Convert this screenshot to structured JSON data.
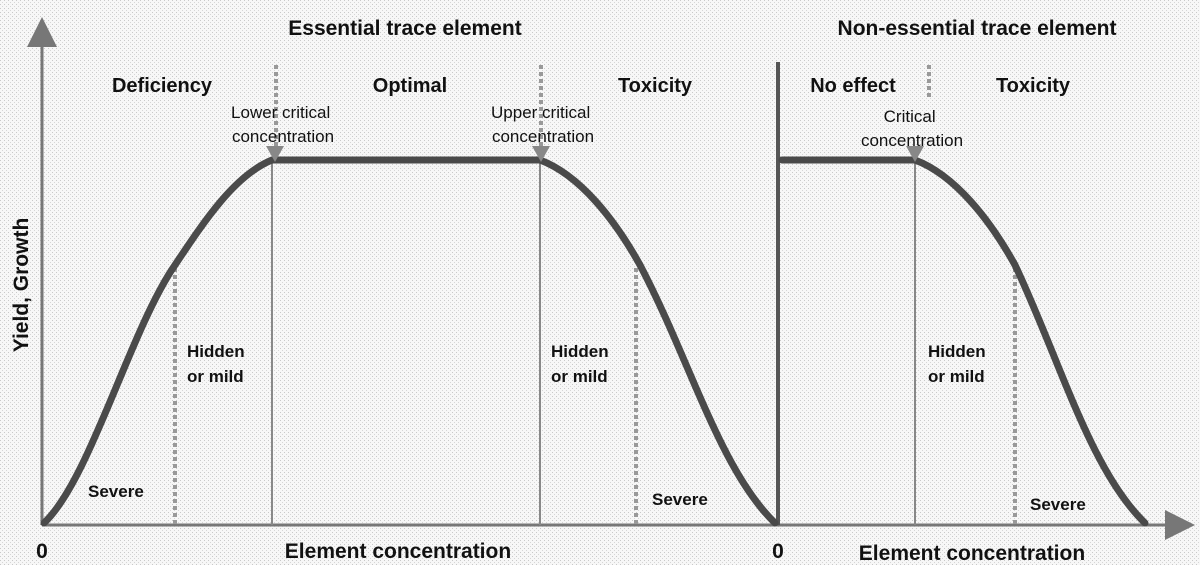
{
  "y_axis_label": "Yield, Growth",
  "essential": {
    "title": "Essential trace element",
    "zones": [
      "Deficiency",
      "Optimal",
      "Toxicity"
    ],
    "lower_critical": [
      "Lower critical",
      "concentration"
    ],
    "upper_critical": [
      "Upper critical",
      "concentration"
    ],
    "hidden_left": [
      "Hidden",
      "or mild"
    ],
    "hidden_right": [
      "Hidden",
      "or mild"
    ],
    "severe_left": "Severe",
    "severe_right": "Severe",
    "origin": "0",
    "x_axis_label": "Element concentration"
  },
  "non_essential": {
    "title": "Non-essential trace element",
    "zones": [
      "No effect",
      "Toxicity"
    ],
    "critical": [
      "Critical",
      "concentration"
    ],
    "hidden": [
      "Hidden",
      "or mild"
    ],
    "severe": "Severe",
    "origin": "0",
    "x_axis_label": "Element concentration"
  }
}
